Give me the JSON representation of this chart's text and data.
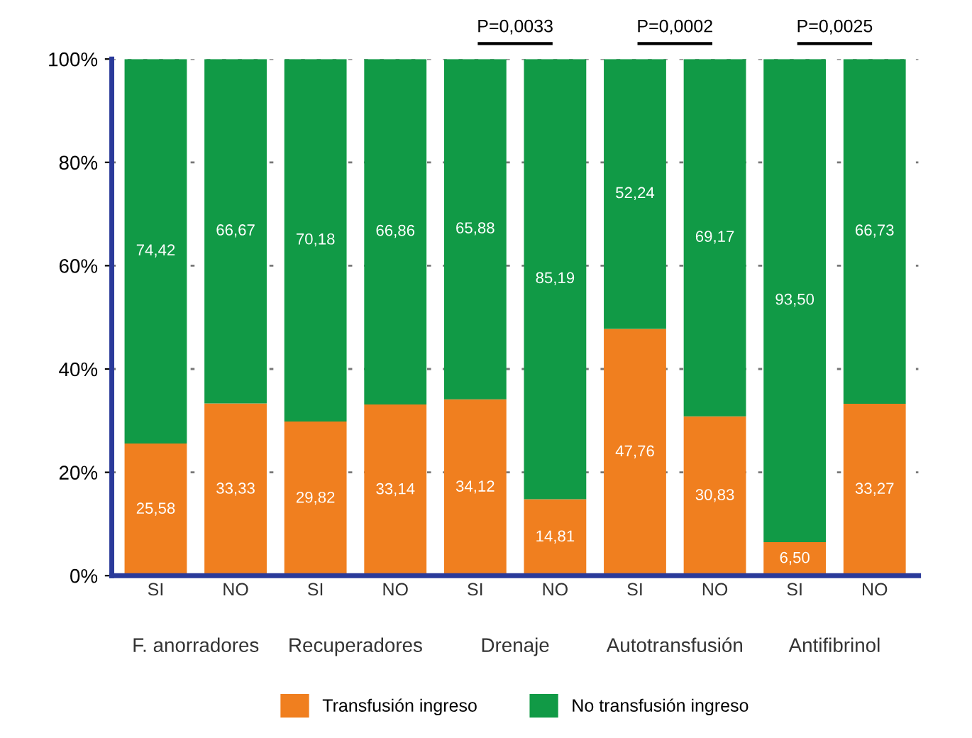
{
  "chart_data": {
    "type": "bar",
    "stacked": true,
    "categories": [
      "SI",
      "NO",
      "SI",
      "NO",
      "SI",
      "NO",
      "SI",
      "NO",
      "SI",
      "NO"
    ],
    "series": [
      {
        "name": "Transfusión ingreso",
        "color": "#f07f1f",
        "values": [
          25.58,
          33.33,
          29.82,
          33.14,
          34.12,
          14.81,
          47.76,
          30.83,
          6.5,
          33.27
        ],
        "value_labels": [
          "25,58",
          "33,33",
          "29,82",
          "33,14",
          "34,12",
          "14,81",
          "47,76",
          "30,83",
          "6,50",
          "33,27"
        ]
      },
      {
        "name": "No transfusión ingreso",
        "color": "#119a46",
        "values": [
          74.42,
          66.67,
          70.18,
          66.86,
          65.88,
          85.19,
          52.24,
          69.17,
          93.5,
          66.73
        ],
        "value_labels": [
          "74,42",
          "66,67",
          "70,18",
          "66,86",
          "65,88",
          "85,19",
          "52,24",
          "69,17",
          "93,50",
          "66,73"
        ]
      }
    ],
    "ylim": [
      0,
      100
    ],
    "yticks": [
      {
        "value": 0,
        "label": "0%"
      },
      {
        "value": 20,
        "label": "20%"
      },
      {
        "value": 40,
        "label": "40%"
      },
      {
        "value": 60,
        "label": "60%"
      },
      {
        "value": 80,
        "label": "80%"
      },
      {
        "value": 100,
        "label": "100%"
      }
    ],
    "annotations": [
      "F. anorradores",
      "Recuperadores",
      "Drenaje",
      "Autotransfusión",
      "Antifibrinol",
      "P=0,0033",
      "P=0,0002",
      "P=0,0025"
    ],
    "grid": "y",
    "legend": "bottom"
  }
}
